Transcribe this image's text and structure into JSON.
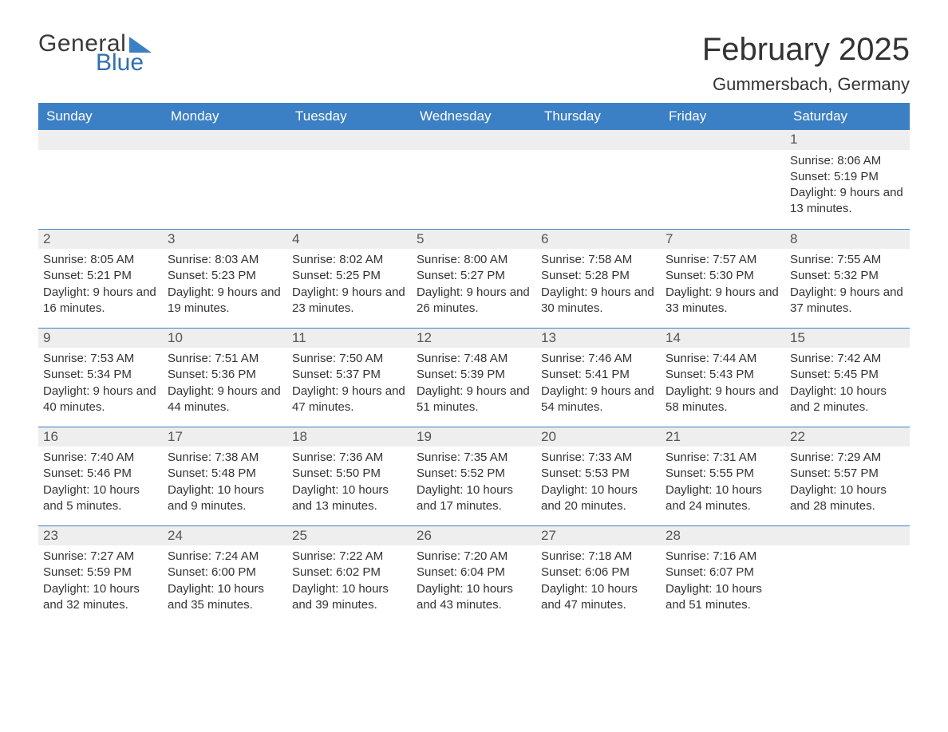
{
  "logo": {
    "line1": "General",
    "line2": "Blue"
  },
  "title": "February 2025",
  "location": "Gummersbach, Germany",
  "colors": {
    "header_bg": "#3b7fc4",
    "header_fg": "#ffffff",
    "band_bg": "#eeeeee",
    "rule": "#3b7fc4",
    "text": "#333333",
    "logo_gray": "#3a3a3a",
    "logo_blue": "#2f6fb0",
    "page_bg": "#ffffff"
  },
  "day_names": [
    "Sunday",
    "Monday",
    "Tuesday",
    "Wednesday",
    "Thursday",
    "Friday",
    "Saturday"
  ],
  "weeks": [
    [
      null,
      null,
      null,
      null,
      null,
      null,
      {
        "n": "1",
        "sunrise": "8:06 AM",
        "sunset": "5:19 PM",
        "daylight": "9 hours and 13 minutes."
      }
    ],
    [
      {
        "n": "2",
        "sunrise": "8:05 AM",
        "sunset": "5:21 PM",
        "daylight": "9 hours and 16 minutes."
      },
      {
        "n": "3",
        "sunrise": "8:03 AM",
        "sunset": "5:23 PM",
        "daylight": "9 hours and 19 minutes."
      },
      {
        "n": "4",
        "sunrise": "8:02 AM",
        "sunset": "5:25 PM",
        "daylight": "9 hours and 23 minutes."
      },
      {
        "n": "5",
        "sunrise": "8:00 AM",
        "sunset": "5:27 PM",
        "daylight": "9 hours and 26 minutes."
      },
      {
        "n": "6",
        "sunrise": "7:58 AM",
        "sunset": "5:28 PM",
        "daylight": "9 hours and 30 minutes."
      },
      {
        "n": "7",
        "sunrise": "7:57 AM",
        "sunset": "5:30 PM",
        "daylight": "9 hours and 33 minutes."
      },
      {
        "n": "8",
        "sunrise": "7:55 AM",
        "sunset": "5:32 PM",
        "daylight": "9 hours and 37 minutes."
      }
    ],
    [
      {
        "n": "9",
        "sunrise": "7:53 AM",
        "sunset": "5:34 PM",
        "daylight": "9 hours and 40 minutes."
      },
      {
        "n": "10",
        "sunrise": "7:51 AM",
        "sunset": "5:36 PM",
        "daylight": "9 hours and 44 minutes."
      },
      {
        "n": "11",
        "sunrise": "7:50 AM",
        "sunset": "5:37 PM",
        "daylight": "9 hours and 47 minutes."
      },
      {
        "n": "12",
        "sunrise": "7:48 AM",
        "sunset": "5:39 PM",
        "daylight": "9 hours and 51 minutes."
      },
      {
        "n": "13",
        "sunrise": "7:46 AM",
        "sunset": "5:41 PM",
        "daylight": "9 hours and 54 minutes."
      },
      {
        "n": "14",
        "sunrise": "7:44 AM",
        "sunset": "5:43 PM",
        "daylight": "9 hours and 58 minutes."
      },
      {
        "n": "15",
        "sunrise": "7:42 AM",
        "sunset": "5:45 PM",
        "daylight": "10 hours and 2 minutes."
      }
    ],
    [
      {
        "n": "16",
        "sunrise": "7:40 AM",
        "sunset": "5:46 PM",
        "daylight": "10 hours and 5 minutes."
      },
      {
        "n": "17",
        "sunrise": "7:38 AM",
        "sunset": "5:48 PM",
        "daylight": "10 hours and 9 minutes."
      },
      {
        "n": "18",
        "sunrise": "7:36 AM",
        "sunset": "5:50 PM",
        "daylight": "10 hours and 13 minutes."
      },
      {
        "n": "19",
        "sunrise": "7:35 AM",
        "sunset": "5:52 PM",
        "daylight": "10 hours and 17 minutes."
      },
      {
        "n": "20",
        "sunrise": "7:33 AM",
        "sunset": "5:53 PM",
        "daylight": "10 hours and 20 minutes."
      },
      {
        "n": "21",
        "sunrise": "7:31 AM",
        "sunset": "5:55 PM",
        "daylight": "10 hours and 24 minutes."
      },
      {
        "n": "22",
        "sunrise": "7:29 AM",
        "sunset": "5:57 PM",
        "daylight": "10 hours and 28 minutes."
      }
    ],
    [
      {
        "n": "23",
        "sunrise": "7:27 AM",
        "sunset": "5:59 PM",
        "daylight": "10 hours and 32 minutes."
      },
      {
        "n": "24",
        "sunrise": "7:24 AM",
        "sunset": "6:00 PM",
        "daylight": "10 hours and 35 minutes."
      },
      {
        "n": "25",
        "sunrise": "7:22 AM",
        "sunset": "6:02 PM",
        "daylight": "10 hours and 39 minutes."
      },
      {
        "n": "26",
        "sunrise": "7:20 AM",
        "sunset": "6:04 PM",
        "daylight": "10 hours and 43 minutes."
      },
      {
        "n": "27",
        "sunrise": "7:18 AM",
        "sunset": "6:06 PM",
        "daylight": "10 hours and 47 minutes."
      },
      {
        "n": "28",
        "sunrise": "7:16 AM",
        "sunset": "6:07 PM",
        "daylight": "10 hours and 51 minutes."
      },
      null
    ]
  ],
  "labels": {
    "sunrise": "Sunrise:",
    "sunset": "Sunset:",
    "daylight": "Daylight:"
  }
}
